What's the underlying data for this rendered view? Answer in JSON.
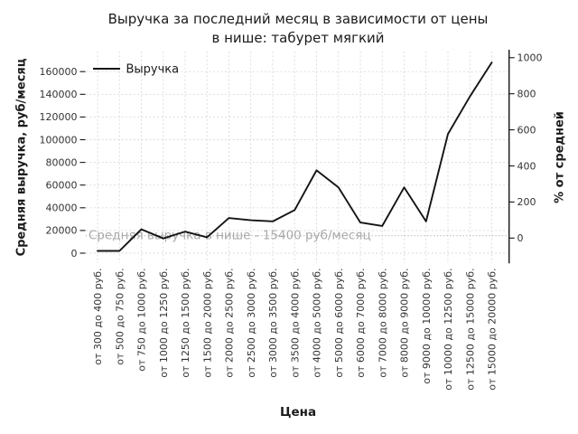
{
  "header": {
    "title_line1": "Выручка за последний месяц в зависимости от цены",
    "title_line2": "в нише: табурет мягкий"
  },
  "chart_data": {
    "type": "line",
    "title": "Выручка за последний месяц в зависимости от цены в нише: табурет мягкий",
    "xlabel": "Цена",
    "grid": true,
    "legend_position": "upper left",
    "legend": {
      "label": "Выручка",
      "line_color": "#141414"
    },
    "categories": [
      "от 300 до 400 руб.",
      "от 500 до 750 руб.",
      "от 750 до 1000 руб.",
      "от 1000 до 1250 руб.",
      "от 1250 до 1500 руб.",
      "от 1500 до 2000 руб.",
      "от 2000 до 2500 руб.",
      "от 2500 до 3000 руб.",
      "от 3000 до 3500 руб.",
      "от 3500 до 4000 руб.",
      "от 4000 до 5000 руб.",
      "от 5000 до 6000 руб.",
      "от 6000 до 7000 руб.",
      "от 7000 до 8000 руб.",
      "от 8000 до 9000 руб.",
      "от 9000 до 10000 руб.",
      "от 10000 до 12500 руб.",
      "от 12500 до 15000 руб.",
      "от 15000 до 20000 руб."
    ],
    "series": [
      {
        "name": "Выручка",
        "values": [
          2000,
          2000,
          21000,
          13000,
          19000,
          14000,
          31000,
          29000,
          28000,
          38000,
          73000,
          58000,
          27000,
          24000,
          58000,
          28000,
          105000,
          138000,
          168000
        ]
      }
    ],
    "left_axis": {
      "title": "Средняя выручка, руб/месяц",
      "ticks": [
        0,
        20000,
        40000,
        60000,
        80000,
        100000,
        120000,
        140000,
        160000
      ],
      "range": [
        0,
        177000
      ]
    },
    "right_axis": {
      "title": "% от средней",
      "ticks": [
        0,
        200,
        400,
        600,
        800,
        1000
      ],
      "range": [
        -100,
        1060
      ]
    },
    "average_line": {
      "value": 15400,
      "label": "Средняя выручка в нише - 15400 руб/месяц",
      "color": "#b3b3b3"
    },
    "colors": {
      "line": "#141414",
      "grid": "#d9d9d9",
      "tick_label": "#333333",
      "annotation": "#a9a9a9",
      "text": "#1b1b1b"
    }
  }
}
